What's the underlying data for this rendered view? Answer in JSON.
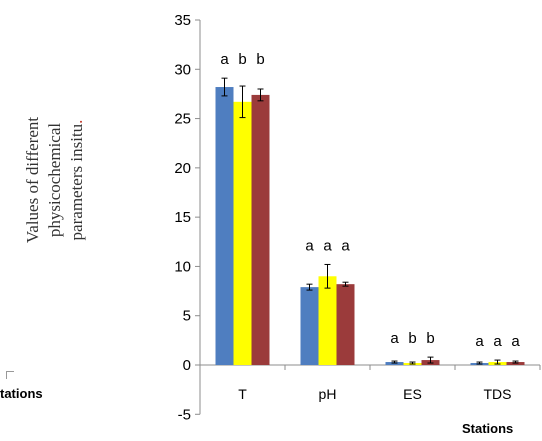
{
  "chart_data": {
    "type": "bar",
    "title": "",
    "ylabel_lines": [
      "Values of different",
      "physicochemical",
      "parameters insitu"
    ],
    "ylabel_trailing_mark": ".",
    "xlabel": "Stations",
    "partial_label": "tations",
    "categories": [
      "T",
      "pH",
      "ES",
      "TDS"
    ],
    "ylim": [
      -5,
      35
    ],
    "yticks": [
      -5,
      0,
      5,
      10,
      15,
      20,
      25,
      30,
      35
    ],
    "grid": false,
    "legend": "none",
    "series": [
      {
        "color": "#4f7ec0",
        "values": [
          28.2,
          7.9,
          0.3,
          0.2
        ],
        "errors": [
          0.9,
          0.3,
          0.1,
          0.1
        ]
      },
      {
        "color": "#ffff00",
        "values": [
          26.7,
          9.0,
          0.2,
          0.3
        ],
        "errors": [
          1.6,
          1.2,
          0.1,
          0.2
        ]
      },
      {
        "color": "#9b3b3b",
        "values": [
          27.4,
          8.2,
          0.5,
          0.3
        ],
        "errors": [
          0.6,
          0.2,
          0.3,
          0.1
        ]
      }
    ],
    "annotations": [
      [
        "a",
        "b",
        "b"
      ],
      [
        "a",
        "a",
        "a"
      ],
      [
        "a",
        "b",
        "b"
      ],
      [
        "a",
        "a",
        "a"
      ]
    ]
  }
}
